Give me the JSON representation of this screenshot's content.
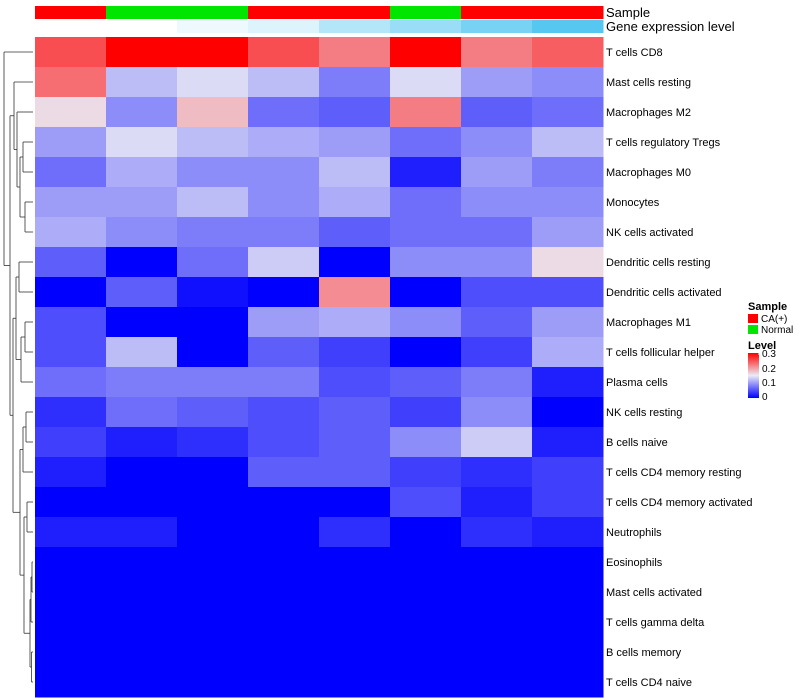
{
  "chart_data": {
    "type": "heatmap",
    "title": "",
    "annotation_labels": [
      "Sample",
      "Gene expression level"
    ],
    "rows": [
      "T cells CD8",
      "Mast cells resting",
      "Macrophages M2",
      "T cells regulatory  Tregs",
      "Macrophages M0",
      "Monocytes",
      "NK cells activated",
      "Dendritic cells resting",
      "Dendritic cells activated",
      "Macrophages M1",
      "T cells follicular helper",
      "Plasma cells",
      "NK cells resting",
      "B cells naive",
      "T cells CD4 memory resting",
      "T cells CD4 memory activated",
      "Neutrophils",
      "Eosinophils",
      "Mast cells activated",
      "T cells gamma delta",
      "B cells memory",
      "T cells CD4 naive"
    ],
    "sample_groups": [
      "CA(+)",
      "Normal",
      "Normal",
      "CA(+)",
      "CA(+)",
      "Normal",
      "CA(+)",
      "CA(+)"
    ],
    "gene_expression_level": [
      0.0,
      0.0,
      0.1,
      0.2,
      0.45,
      0.6,
      0.8,
      1.0
    ],
    "values": [
      [
        0.25,
        0.3,
        0.3,
        0.25,
        0.22,
        0.3,
        0.22,
        0.24
      ],
      [
        0.23,
        0.12,
        0.14,
        0.12,
        0.08,
        0.14,
        0.1,
        0.09
      ],
      [
        0.16,
        0.09,
        0.18,
        0.07,
        0.06,
        0.22,
        0.06,
        0.07
      ],
      [
        0.1,
        0.14,
        0.12,
        0.11,
        0.1,
        0.07,
        0.09,
        0.12
      ],
      [
        0.07,
        0.11,
        0.09,
        0.09,
        0.12,
        0.02,
        0.1,
        0.08
      ],
      [
        0.1,
        0.1,
        0.12,
        0.09,
        0.11,
        0.07,
        0.09,
        0.09
      ],
      [
        0.11,
        0.09,
        0.08,
        0.08,
        0.06,
        0.07,
        0.07,
        0.1
      ],
      [
        0.06,
        0.0,
        0.07,
        0.13,
        0.0,
        0.09,
        0.09,
        0.16
      ],
      [
        0.0,
        0.06,
        0.01,
        0.0,
        0.21,
        0.0,
        0.05,
        0.05
      ],
      [
        0.05,
        0.0,
        0.0,
        0.1,
        0.11,
        0.09,
        0.06,
        0.1
      ],
      [
        0.05,
        0.12,
        0.0,
        0.06,
        0.04,
        0.0,
        0.04,
        0.11
      ],
      [
        0.07,
        0.08,
        0.08,
        0.08,
        0.05,
        0.06,
        0.08,
        0.02
      ],
      [
        0.03,
        0.07,
        0.06,
        0.05,
        0.06,
        0.04,
        0.09,
        0.0
      ],
      [
        0.04,
        0.02,
        0.03,
        0.05,
        0.06,
        0.09,
        0.13,
        0.02
      ],
      [
        0.02,
        0.0,
        0.0,
        0.06,
        0.06,
        0.04,
        0.03,
        0.04
      ],
      [
        0.0,
        0.0,
        0.0,
        0.0,
        0.0,
        0.05,
        0.02,
        0.04
      ],
      [
        0.02,
        0.02,
        0.0,
        0.0,
        0.03,
        0.0,
        0.03,
        0.02
      ],
      [
        0.0,
        0.0,
        0.0,
        0.0,
        0.0,
        0.0,
        0.0,
        0.0
      ],
      [
        0.0,
        0.0,
        0.0,
        0.0,
        0.0,
        0.0,
        0.0,
        0.0
      ],
      [
        0.0,
        0.0,
        0.0,
        0.0,
        0.0,
        0.0,
        0.0,
        0.0
      ],
      [
        0.0,
        0.0,
        0.0,
        0.0,
        0.0,
        0.0,
        0.0,
        0.0
      ],
      [
        0.0,
        0.0,
        0.0,
        0.0,
        0.0,
        0.0,
        0.0,
        0.0
      ]
    ],
    "color_scale": {
      "low": "#0000ff",
      "mid": "#ebebf5",
      "high": "#ff0000",
      "min": 0,
      "max": 0.3
    },
    "sample_colors": {
      "CA(+)": "#ff0000",
      "Normal": "#00e600"
    },
    "gene_expression_colors": {
      "low": "#ffffff",
      "high": "#56c7f0"
    },
    "legend": {
      "sample_title": "Sample",
      "sample_entries": [
        "CA(+)",
        "Normal"
      ],
      "level_title": "Level",
      "level_ticks": [
        "0.3",
        "0.2",
        "0.1",
        "0"
      ],
      "placement": "right"
    }
  }
}
